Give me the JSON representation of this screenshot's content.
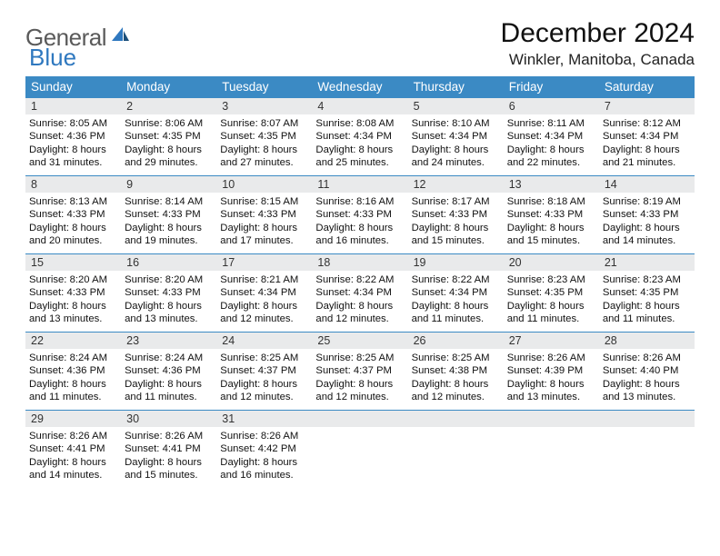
{
  "logo": {
    "text1": "General",
    "text2": "Blue"
  },
  "title": "December 2024",
  "location": "Winkler, Manitoba, Canada",
  "colors": {
    "header_bg": "#3b8ac4",
    "header_text": "#ffffff",
    "daynum_bg": "#e9eaeb",
    "border": "#3b8ac4",
    "logo_gray": "#5a5a5a",
    "logo_blue": "#2f78bf",
    "page_bg": "#ffffff"
  },
  "weekdays": [
    "Sunday",
    "Monday",
    "Tuesday",
    "Wednesday",
    "Thursday",
    "Friday",
    "Saturday"
  ],
  "weeks": [
    [
      {
        "num": "1",
        "l1": "Sunrise: 8:05 AM",
        "l2": "Sunset: 4:36 PM",
        "l3": "Daylight: 8 hours",
        "l4": "and 31 minutes."
      },
      {
        "num": "2",
        "l1": "Sunrise: 8:06 AM",
        "l2": "Sunset: 4:35 PM",
        "l3": "Daylight: 8 hours",
        "l4": "and 29 minutes."
      },
      {
        "num": "3",
        "l1": "Sunrise: 8:07 AM",
        "l2": "Sunset: 4:35 PM",
        "l3": "Daylight: 8 hours",
        "l4": "and 27 minutes."
      },
      {
        "num": "4",
        "l1": "Sunrise: 8:08 AM",
        "l2": "Sunset: 4:34 PM",
        "l3": "Daylight: 8 hours",
        "l4": "and 25 minutes."
      },
      {
        "num": "5",
        "l1": "Sunrise: 8:10 AM",
        "l2": "Sunset: 4:34 PM",
        "l3": "Daylight: 8 hours",
        "l4": "and 24 minutes."
      },
      {
        "num": "6",
        "l1": "Sunrise: 8:11 AM",
        "l2": "Sunset: 4:34 PM",
        "l3": "Daylight: 8 hours",
        "l4": "and 22 minutes."
      },
      {
        "num": "7",
        "l1": "Sunrise: 8:12 AM",
        "l2": "Sunset: 4:34 PM",
        "l3": "Daylight: 8 hours",
        "l4": "and 21 minutes."
      }
    ],
    [
      {
        "num": "8",
        "l1": "Sunrise: 8:13 AM",
        "l2": "Sunset: 4:33 PM",
        "l3": "Daylight: 8 hours",
        "l4": "and 20 minutes."
      },
      {
        "num": "9",
        "l1": "Sunrise: 8:14 AM",
        "l2": "Sunset: 4:33 PM",
        "l3": "Daylight: 8 hours",
        "l4": "and 19 minutes."
      },
      {
        "num": "10",
        "l1": "Sunrise: 8:15 AM",
        "l2": "Sunset: 4:33 PM",
        "l3": "Daylight: 8 hours",
        "l4": "and 17 minutes."
      },
      {
        "num": "11",
        "l1": "Sunrise: 8:16 AM",
        "l2": "Sunset: 4:33 PM",
        "l3": "Daylight: 8 hours",
        "l4": "and 16 minutes."
      },
      {
        "num": "12",
        "l1": "Sunrise: 8:17 AM",
        "l2": "Sunset: 4:33 PM",
        "l3": "Daylight: 8 hours",
        "l4": "and 15 minutes."
      },
      {
        "num": "13",
        "l1": "Sunrise: 8:18 AM",
        "l2": "Sunset: 4:33 PM",
        "l3": "Daylight: 8 hours",
        "l4": "and 15 minutes."
      },
      {
        "num": "14",
        "l1": "Sunrise: 8:19 AM",
        "l2": "Sunset: 4:33 PM",
        "l3": "Daylight: 8 hours",
        "l4": "and 14 minutes."
      }
    ],
    [
      {
        "num": "15",
        "l1": "Sunrise: 8:20 AM",
        "l2": "Sunset: 4:33 PM",
        "l3": "Daylight: 8 hours",
        "l4": "and 13 minutes."
      },
      {
        "num": "16",
        "l1": "Sunrise: 8:20 AM",
        "l2": "Sunset: 4:33 PM",
        "l3": "Daylight: 8 hours",
        "l4": "and 13 minutes."
      },
      {
        "num": "17",
        "l1": "Sunrise: 8:21 AM",
        "l2": "Sunset: 4:34 PM",
        "l3": "Daylight: 8 hours",
        "l4": "and 12 minutes."
      },
      {
        "num": "18",
        "l1": "Sunrise: 8:22 AM",
        "l2": "Sunset: 4:34 PM",
        "l3": "Daylight: 8 hours",
        "l4": "and 12 minutes."
      },
      {
        "num": "19",
        "l1": "Sunrise: 8:22 AM",
        "l2": "Sunset: 4:34 PM",
        "l3": "Daylight: 8 hours",
        "l4": "and 11 minutes."
      },
      {
        "num": "20",
        "l1": "Sunrise: 8:23 AM",
        "l2": "Sunset: 4:35 PM",
        "l3": "Daylight: 8 hours",
        "l4": "and 11 minutes."
      },
      {
        "num": "21",
        "l1": "Sunrise: 8:23 AM",
        "l2": "Sunset: 4:35 PM",
        "l3": "Daylight: 8 hours",
        "l4": "and 11 minutes."
      }
    ],
    [
      {
        "num": "22",
        "l1": "Sunrise: 8:24 AM",
        "l2": "Sunset: 4:36 PM",
        "l3": "Daylight: 8 hours",
        "l4": "and 11 minutes."
      },
      {
        "num": "23",
        "l1": "Sunrise: 8:24 AM",
        "l2": "Sunset: 4:36 PM",
        "l3": "Daylight: 8 hours",
        "l4": "and 11 minutes."
      },
      {
        "num": "24",
        "l1": "Sunrise: 8:25 AM",
        "l2": "Sunset: 4:37 PM",
        "l3": "Daylight: 8 hours",
        "l4": "and 12 minutes."
      },
      {
        "num": "25",
        "l1": "Sunrise: 8:25 AM",
        "l2": "Sunset: 4:37 PM",
        "l3": "Daylight: 8 hours",
        "l4": "and 12 minutes."
      },
      {
        "num": "26",
        "l1": "Sunrise: 8:25 AM",
        "l2": "Sunset: 4:38 PM",
        "l3": "Daylight: 8 hours",
        "l4": "and 12 minutes."
      },
      {
        "num": "27",
        "l1": "Sunrise: 8:26 AM",
        "l2": "Sunset: 4:39 PM",
        "l3": "Daylight: 8 hours",
        "l4": "and 13 minutes."
      },
      {
        "num": "28",
        "l1": "Sunrise: 8:26 AM",
        "l2": "Sunset: 4:40 PM",
        "l3": "Daylight: 8 hours",
        "l4": "and 13 minutes."
      }
    ],
    [
      {
        "num": "29",
        "l1": "Sunrise: 8:26 AM",
        "l2": "Sunset: 4:41 PM",
        "l3": "Daylight: 8 hours",
        "l4": "and 14 minutes."
      },
      {
        "num": "30",
        "l1": "Sunrise: 8:26 AM",
        "l2": "Sunset: 4:41 PM",
        "l3": "Daylight: 8 hours",
        "l4": "and 15 minutes."
      },
      {
        "num": "31",
        "l1": "Sunrise: 8:26 AM",
        "l2": "Sunset: 4:42 PM",
        "l3": "Daylight: 8 hours",
        "l4": "and 16 minutes."
      },
      {
        "empty": true
      },
      {
        "empty": true
      },
      {
        "empty": true
      },
      {
        "empty": true
      }
    ]
  ]
}
